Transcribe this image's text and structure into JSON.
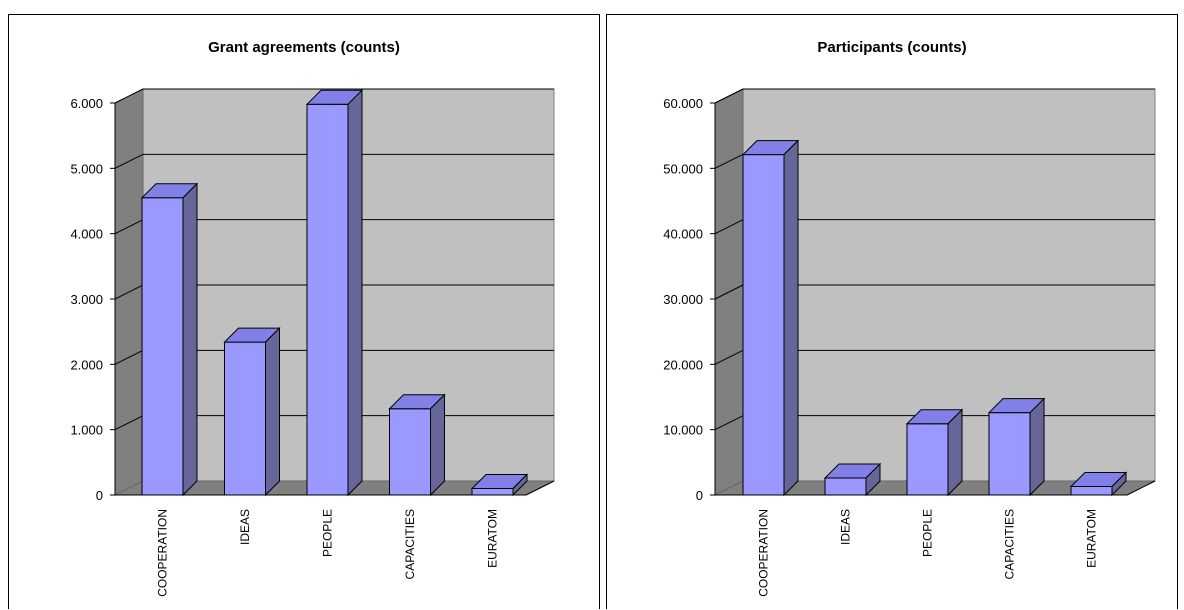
{
  "colors": {
    "bar_front": "#9999ff",
    "bar_side": "#666699",
    "bar_top": "#8080e6",
    "plot_back": "#c0c0c0",
    "left_wall": "#808080",
    "floor": "#808080"
  },
  "chart_data": [
    {
      "type": "bar",
      "title": "Grant agreements (counts)",
      "categories": [
        "COOPERATION",
        "IDEAS",
        "PEOPLE",
        "CAPACITIES",
        "EURATOM"
      ],
      "values": [
        4550,
        2340,
        5980,
        1320,
        100
      ],
      "ylim": [
        0,
        6000
      ],
      "yticks": [
        "0",
        "1.000",
        "2.000",
        "3.000",
        "4.000",
        "5.000",
        "6.000"
      ],
      "grid": true,
      "legend": "none"
    },
    {
      "type": "bar",
      "title": "Participants (counts)",
      "categories": [
        "COOPERATION",
        "IDEAS",
        "PEOPLE",
        "CAPACITIES",
        "EURATOM"
      ],
      "values": [
        52100,
        2600,
        10900,
        12600,
        1300
      ],
      "ylim": [
        0,
        60000
      ],
      "yticks": [
        "0",
        "10.000",
        "20.000",
        "30.000",
        "40.000",
        "50.000",
        "60.000"
      ],
      "grid": true,
      "legend": "none"
    }
  ]
}
